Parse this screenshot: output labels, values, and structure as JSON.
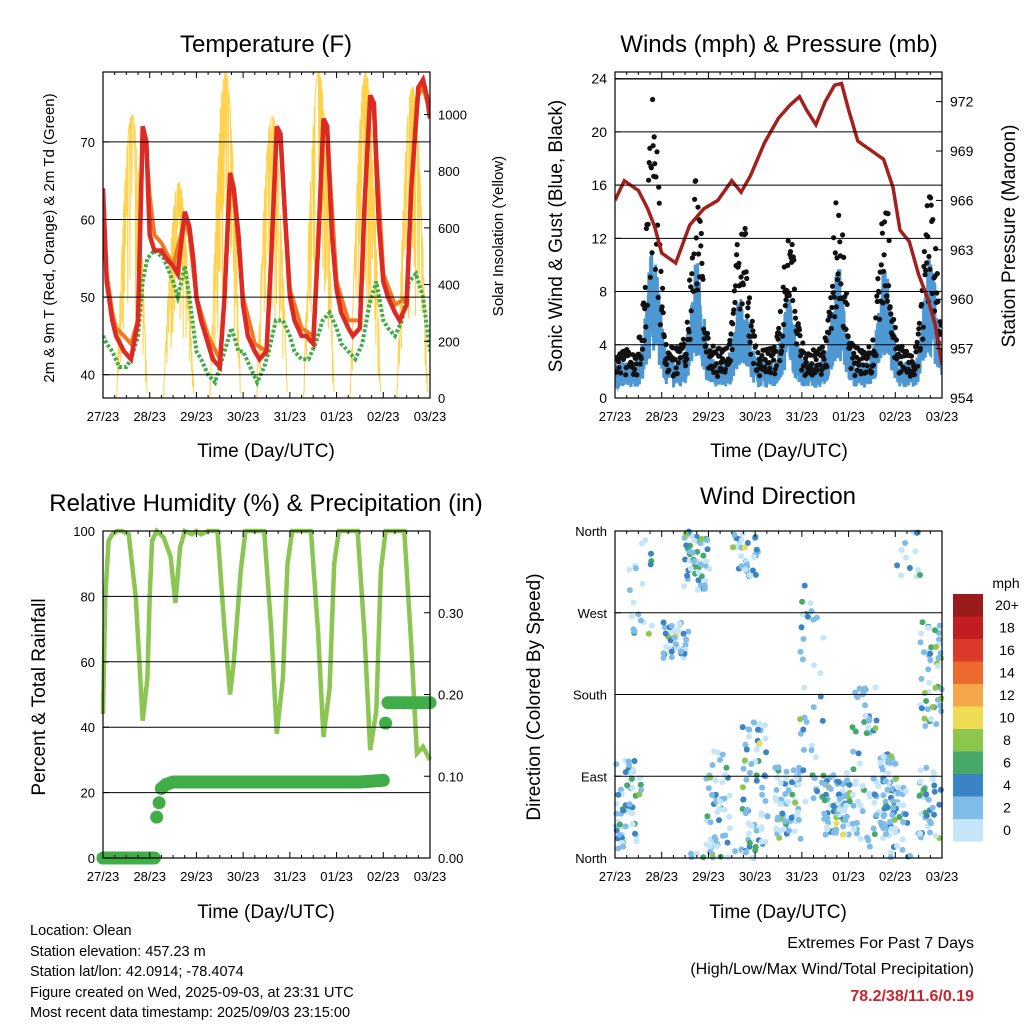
{
  "chart_data": [
    {
      "type": "line",
      "title": "Temperature (F)",
      "xlabel": "Time (Day/UTC)",
      "ylabel": "2m & 9m T (Red, Orange) & 2m Td (Green)",
      "y2label": "Solar Insolation (Yellow)",
      "x_ticks": [
        "27/23",
        "28/23",
        "29/23",
        "30/23",
        "31/23",
        "01/23",
        "02/23",
        "03/23"
      ],
      "ylim": [
        37,
        79
      ],
      "y_ticks": [
        40,
        50,
        60,
        70
      ],
      "y2lim": [
        0,
        1150
      ],
      "y2_ticks": [
        0,
        200,
        400,
        600,
        800,
        1000
      ],
      "grid": "y",
      "series": [
        {
          "name": "2m T",
          "color": "#dd2a24",
          "axis": "left",
          "x": [
            0,
            0.08,
            0.2,
            0.28,
            0.45,
            0.6,
            0.75,
            0.85,
            0.93,
            1.0,
            1.1,
            1.25,
            1.35,
            1.5,
            1.6,
            1.75,
            1.85,
            1.93,
            2.0,
            2.1,
            2.25,
            2.35,
            2.5,
            2.6,
            2.72,
            2.8,
            2.9,
            3.0,
            3.1,
            3.25,
            3.35,
            3.5,
            3.6,
            3.72,
            3.8,
            3.9,
            4.0,
            4.1,
            4.25,
            4.35,
            4.5,
            4.6,
            4.72,
            4.8,
            4.9,
            5.0,
            5.1,
            5.25,
            5.35,
            5.5,
            5.6,
            5.72,
            5.8,
            5.9,
            6.0,
            6.1,
            6.25,
            6.35,
            6.5,
            6.6,
            6.75,
            6.85,
            6.93,
            7.0
          ],
          "y": [
            64,
            52,
            47,
            45,
            43,
            42,
            47,
            72,
            70,
            58,
            56,
            56,
            55,
            54,
            53,
            61,
            59,
            55,
            50,
            47,
            44,
            42,
            41,
            50,
            66,
            64,
            58,
            49,
            45,
            43,
            42,
            43,
            55,
            72,
            71,
            60,
            50,
            47,
            45,
            45,
            44,
            56,
            73,
            72,
            58,
            51,
            48,
            46,
            45,
            46,
            62,
            76,
            75,
            60,
            52,
            50,
            48,
            47,
            49,
            64,
            77,
            78,
            76,
            73
          ]
        },
        {
          "name": "9m T",
          "color": "#f07a22",
          "axis": "left",
          "x": [
            0,
            0.08,
            0.2,
            0.28,
            0.45,
            0.6,
            0.75,
            0.85,
            0.93,
            1.0,
            1.1,
            1.25,
            1.5,
            1.75,
            1.85,
            2.0,
            2.25,
            2.5,
            2.6,
            2.72,
            2.8,
            3.0,
            3.25,
            3.5,
            3.6,
            3.72,
            3.8,
            4.0,
            4.25,
            4.5,
            4.6,
            4.72,
            4.8,
            5.0,
            5.25,
            5.5,
            5.6,
            5.72,
            5.8,
            6.0,
            6.25,
            6.5,
            6.6,
            6.75,
            6.85,
            7.0
          ],
          "y": [
            63,
            53,
            48,
            46,
            45,
            44,
            47,
            71,
            69,
            63,
            58,
            57,
            54,
            60,
            58,
            50,
            45,
            42,
            50,
            65,
            63,
            50,
            44,
            43,
            55,
            71,
            70,
            51,
            46,
            45,
            56,
            72,
            71,
            52,
            47,
            47,
            62,
            75,
            74,
            53,
            49,
            50,
            64,
            76,
            77,
            74
          ]
        },
        {
          "name": "2m Td",
          "color": "#41ad49",
          "axis": "left",
          "x": [
            0,
            0.08,
            0.2,
            0.35,
            0.5,
            0.6,
            0.75,
            0.85,
            0.95,
            1.1,
            1.3,
            1.5,
            1.6,
            1.75,
            1.85,
            2.0,
            2.1,
            2.25,
            2.4,
            2.5,
            2.6,
            2.75,
            2.9,
            3.0,
            3.15,
            3.3,
            3.45,
            3.55,
            3.7,
            3.85,
            4.0,
            4.1,
            4.25,
            4.4,
            4.55,
            4.7,
            4.85,
            5.0,
            5.1,
            5.25,
            5.4,
            5.55,
            5.7,
            5.85,
            6.0,
            6.1,
            6.25,
            6.4,
            6.55,
            6.7,
            6.85,
            7.0
          ],
          "y": [
            45,
            44,
            43,
            41,
            41,
            42,
            45,
            52,
            55,
            56,
            55,
            52,
            50,
            54,
            50,
            43,
            42,
            40,
            39,
            41,
            43,
            46,
            43,
            43,
            41,
            39,
            41,
            43,
            47,
            47,
            45,
            43,
            42,
            42,
            44,
            47,
            48,
            46,
            44,
            43,
            42,
            44,
            49,
            52,
            47,
            46,
            45,
            47,
            52,
            53,
            50,
            43
          ]
        },
        {
          "name": "Solar Insolation",
          "color": "#ffd24a",
          "axis": "right",
          "peaks_day": [
            0.62,
            1.62,
            2.62,
            3.62,
            4.62,
            5.62,
            6.62
          ],
          "peak_values": [
            1000,
            760,
            1150,
            1000,
            1150,
            1150,
            1100
          ]
        }
      ]
    },
    {
      "type": "line",
      "title": "Winds (mph) & Pressure (mb)",
      "xlabel": "Time (Day/UTC)",
      "ylabel": "Sonic Wind & Gust (Blue, Black)",
      "y2label": "Station Pressure (Maroon)",
      "x_ticks": [
        "27/23",
        "28/23",
        "29/23",
        "30/23",
        "31/23",
        "01/23",
        "02/23",
        "03/23"
      ],
      "ylim": [
        0,
        24.5
      ],
      "y_ticks": [
        0,
        4,
        8,
        12,
        16,
        20,
        24
      ],
      "y2lim": [
        954,
        973.8
      ],
      "y2_ticks": [
        954,
        957,
        960,
        963,
        966,
        969,
        972
      ],
      "grid": "y",
      "wind_peaks_day": [
        0.82,
        1.75,
        2.72,
        3.72,
        4.78,
        5.78,
        6.75
      ],
      "wind_peak_values": [
        9.5,
        8.5,
        7,
        6,
        8,
        8.5,
        8.5
      ],
      "gust_peak_values": [
        22,
        16,
        15,
        13,
        15,
        15,
        16
      ],
      "series": [
        {
          "name": "Sonic Wind",
          "color": "#4d97d2"
        },
        {
          "name": "Gust",
          "color": "#111111"
        },
        {
          "name": "Station Pressure",
          "color": "#a3201d",
          "x": [
            0,
            0.2,
            0.5,
            0.7,
            0.85,
            1.0,
            1.3,
            1.6,
            1.9,
            2.2,
            2.5,
            2.7,
            2.9,
            3.2,
            3.5,
            3.75,
            3.95,
            4.1,
            4.3,
            4.5,
            4.7,
            4.85,
            5.0,
            5.2,
            5.5,
            5.75,
            5.95,
            6.1,
            6.3,
            6.5,
            6.7,
            6.85,
            7.0
          ],
          "y": [
            966,
            967.2,
            966.6,
            965.5,
            964.4,
            962.8,
            962.2,
            964.5,
            965.5,
            966,
            967.2,
            966.5,
            967.5,
            969.5,
            971,
            971.8,
            972.3,
            971.5,
            970.6,
            972,
            973,
            973.1,
            971.5,
            969.6,
            969,
            968.5,
            966.8,
            964.2,
            963.5,
            961.5,
            960,
            958.5,
            956
          ]
        }
      ]
    },
    {
      "type": "line",
      "title": "Relative Humidity (%) & Precipitation (in)",
      "xlabel": "Time (Day/UTC)",
      "ylabel": "Percent & Total Rainfall",
      "x_ticks": [
        "27/23",
        "28/23",
        "29/23",
        "30/23",
        "31/23",
        "01/23",
        "02/23",
        "03/23"
      ],
      "ylim": [
        0,
        100
      ],
      "y_ticks": [
        0,
        20,
        40,
        60,
        80,
        100
      ],
      "y2lim": [
        0,
        0.4
      ],
      "y2_ticks": [
        0.0,
        0.1,
        0.2,
        0.3
      ],
      "grid": "y",
      "series": [
        {
          "name": "Relative Humidity",
          "color": "#8ac651",
          "axis": "left",
          "x": [
            0,
            0.05,
            0.12,
            0.2,
            0.3,
            0.4,
            0.55,
            0.7,
            0.85,
            0.95,
            1.0,
            1.05,
            1.15,
            1.3,
            1.45,
            1.55,
            1.65,
            1.75,
            1.9,
            2.0,
            2.1,
            2.25,
            2.45,
            2.6,
            2.72,
            2.8,
            2.95,
            3.05,
            3.2,
            3.45,
            3.6,
            3.72,
            3.85,
            3.95,
            4.05,
            4.2,
            4.45,
            4.6,
            4.72,
            4.85,
            4.95,
            5.05,
            5.2,
            5.45,
            5.6,
            5.72,
            5.85,
            5.95,
            6.05,
            6.2,
            6.45,
            6.6,
            6.72,
            6.85,
            7.0
          ],
          "y": [
            44,
            80,
            97,
            99,
            100,
            100,
            99,
            80,
            42,
            55,
            80,
            97,
            100,
            98,
            92,
            78,
            95,
            100,
            99,
            100,
            99,
            100,
            100,
            70,
            50,
            60,
            88,
            100,
            100,
            100,
            70,
            38,
            55,
            90,
            100,
            100,
            100,
            70,
            37,
            52,
            90,
            100,
            100,
            100,
            68,
            33,
            45,
            88,
            100,
            100,
            100,
            65,
            32,
            34,
            30
          ]
        },
        {
          "name": "Total Rainfall",
          "color": "#41ad49",
          "axis": "right",
          "x": [
            0,
            0.5,
            1.1,
            1.15,
            1.25,
            1.35,
            1.5,
            2.0,
            3.0,
            4.0,
            5.0,
            5.5,
            6.0,
            6.02,
            6.05,
            6.1,
            6.3,
            6.6,
            7.0
          ],
          "y": [
            0,
            0,
            0,
            0.05,
            0.085,
            0.09,
            0.093,
            0.093,
            0.093,
            0.093,
            0.093,
            0.093,
            0.095,
            0.13,
            0.165,
            0.19,
            0.19,
            0.19,
            0.19
          ]
        }
      ]
    },
    {
      "type": "scatter",
      "title": "Wind Direction",
      "xlabel": "Time (Day/UTC)",
      "ylabel": "Direction (Colored By Speed)",
      "x_ticks": [
        "27/23",
        "28/23",
        "29/23",
        "30/23",
        "31/23",
        "01/23",
        "02/23",
        "03/23"
      ],
      "y_ticks": [
        "North",
        "East",
        "South",
        "West",
        "North"
      ],
      "ylim": [
        0,
        360
      ],
      "grid": "y",
      "colorbar": {
        "unit": "mph",
        "labels": [
          "20+",
          "18",
          "16",
          "14",
          "12",
          "10",
          "8",
          "6",
          "4",
          "2",
          "0"
        ],
        "colors": [
          "#9b1b1b",
          "#c21d22",
          "#db3a2a",
          "#ec6a2b",
          "#f6a64b",
          "#eedc55",
          "#8cc64c",
          "#46a96a",
          "#3b84c4",
          "#80bce8",
          "#c4e6f8"
        ]
      }
    }
  ],
  "info": {
    "location": "Location: Olean",
    "elevation": "Station elevation: 457.23 m",
    "latlon": "Station lat/lon: 42.0914; -78.4074",
    "created": "Figure created on Wed, 2025-09-03, at 23:31 UTC",
    "timestamp": "Most recent data timestamp: 2025/09/03 23:15:00"
  },
  "extremes": {
    "title": "Extremes For Past 7 Days",
    "subtitle": "(High/Low/Max Wind/Total Precipitation)",
    "values": "78.2/38/11.6/0.19"
  }
}
